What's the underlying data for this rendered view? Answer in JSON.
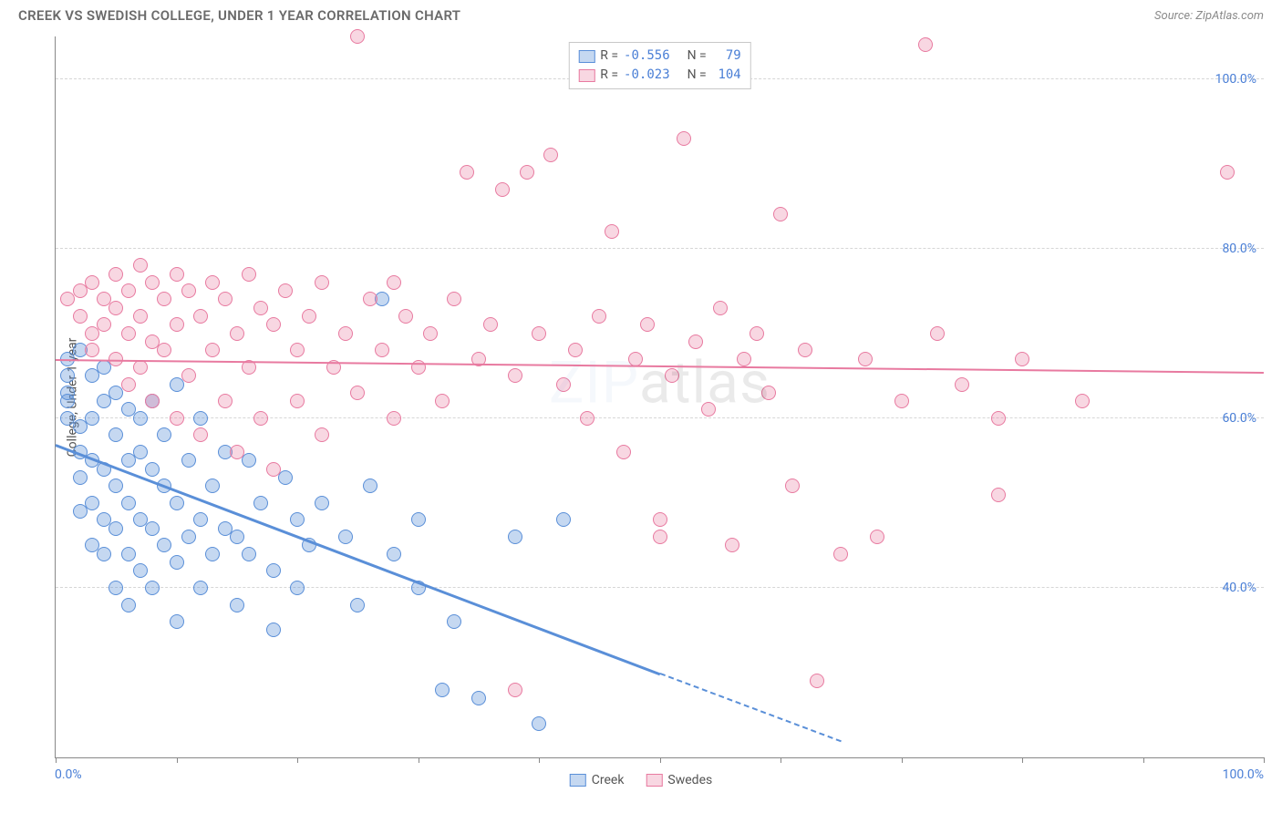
{
  "title": "CREEK VS SWEDISH COLLEGE, UNDER 1 YEAR CORRELATION CHART",
  "source": "Source: ZipAtlas.com",
  "ylabel": "College, Under 1 year",
  "watermark": {
    "part1": "ZIP",
    "part2": "atlas"
  },
  "chart": {
    "type": "scatter",
    "background_color": "#ffffff",
    "grid_color": "#d6d6d6",
    "axis_color": "#888888",
    "tick_label_color": "#4a7fd6",
    "tick_fontsize": 14,
    "ylabel_fontsize": 14,
    "xlim": [
      0,
      100
    ],
    "ylim": [
      20,
      105
    ],
    "y_ticks": [
      40,
      60,
      80,
      100
    ],
    "y_tick_labels": [
      "40.0%",
      "60.0%",
      "80.0%",
      "100.0%"
    ],
    "x_tick_positions": [
      0,
      10,
      20,
      30,
      40,
      50,
      60,
      70,
      80,
      90,
      100
    ],
    "x_min_label": "0.0%",
    "x_max_label": "100.0%",
    "marker_radius": 8,
    "marker_border_width": 1.5,
    "marker_fill_opacity": 0.35,
    "series": [
      {
        "name": "Creek",
        "color": "#5a8fd8",
        "fill": "rgba(90,143,216,0.35)",
        "R": "-0.556",
        "N": "79",
        "trend": {
          "x0": 0,
          "y0": 57,
          "x1": 50,
          "y1": 30,
          "dash_x1": 65,
          "dash_y1": 22,
          "line_width": 2.5
        },
        "points": [
          [
            1,
            67
          ],
          [
            1,
            65
          ],
          [
            1,
            63
          ],
          [
            1,
            62
          ],
          [
            1,
            60
          ],
          [
            2,
            68
          ],
          [
            2,
            59
          ],
          [
            2,
            56
          ],
          [
            2,
            53
          ],
          [
            2,
            49
          ],
          [
            3,
            65
          ],
          [
            3,
            60
          ],
          [
            3,
            55
          ],
          [
            3,
            50
          ],
          [
            3,
            45
          ],
          [
            4,
            66
          ],
          [
            4,
            62
          ],
          [
            4,
            54
          ],
          [
            4,
            48
          ],
          [
            4,
            44
          ],
          [
            5,
            63
          ],
          [
            5,
            58
          ],
          [
            5,
            52
          ],
          [
            5,
            47
          ],
          [
            5,
            40
          ],
          [
            6,
            61
          ],
          [
            6,
            55
          ],
          [
            6,
            50
          ],
          [
            6,
            44
          ],
          [
            6,
            38
          ],
          [
            7,
            60
          ],
          [
            7,
            56
          ],
          [
            7,
            48
          ],
          [
            7,
            42
          ],
          [
            8,
            62
          ],
          [
            8,
            54
          ],
          [
            8,
            47
          ],
          [
            8,
            40
          ],
          [
            9,
            58
          ],
          [
            9,
            52
          ],
          [
            9,
            45
          ],
          [
            10,
            64
          ],
          [
            10,
            50
          ],
          [
            10,
            43
          ],
          [
            10,
            36
          ],
          [
            11,
            55
          ],
          [
            11,
            46
          ],
          [
            12,
            60
          ],
          [
            12,
            48
          ],
          [
            12,
            40
          ],
          [
            13,
            52
          ],
          [
            13,
            44
          ],
          [
            14,
            56
          ],
          [
            14,
            47
          ],
          [
            15,
            46
          ],
          [
            15,
            38
          ],
          [
            16,
            55
          ],
          [
            16,
            44
          ],
          [
            17,
            50
          ],
          [
            18,
            42
          ],
          [
            18,
            35
          ],
          [
            19,
            53
          ],
          [
            20,
            48
          ],
          [
            20,
            40
          ],
          [
            21,
            45
          ],
          [
            22,
            50
          ],
          [
            24,
            46
          ],
          [
            25,
            38
          ],
          [
            26,
            52
          ],
          [
            27,
            74
          ],
          [
            28,
            44
          ],
          [
            30,
            48
          ],
          [
            30,
            40
          ],
          [
            32,
            28
          ],
          [
            33,
            36
          ],
          [
            35,
            27
          ],
          [
            38,
            46
          ],
          [
            40,
            24
          ],
          [
            42,
            48
          ]
        ]
      },
      {
        "name": "Swedes",
        "color": "#e87aa0",
        "fill": "rgba(232,122,160,0.30)",
        "R": "-0.023",
        "N": "104",
        "trend": {
          "x0": 0,
          "y0": 67,
          "x1": 100,
          "y1": 65.5,
          "line_width": 2
        },
        "points": [
          [
            1,
            74
          ],
          [
            2,
            75
          ],
          [
            2,
            72
          ],
          [
            3,
            76
          ],
          [
            3,
            70
          ],
          [
            3,
            68
          ],
          [
            4,
            74
          ],
          [
            4,
            71
          ],
          [
            5,
            77
          ],
          [
            5,
            73
          ],
          [
            5,
            67
          ],
          [
            6,
            75
          ],
          [
            6,
            70
          ],
          [
            6,
            64
          ],
          [
            7,
            78
          ],
          [
            7,
            72
          ],
          [
            7,
            66
          ],
          [
            8,
            76
          ],
          [
            8,
            69
          ],
          [
            8,
            62
          ],
          [
            9,
            74
          ],
          [
            9,
            68
          ],
          [
            10,
            77
          ],
          [
            10,
            71
          ],
          [
            10,
            60
          ],
          [
            11,
            75
          ],
          [
            11,
            65
          ],
          [
            12,
            72
          ],
          [
            12,
            58
          ],
          [
            13,
            76
          ],
          [
            13,
            68
          ],
          [
            14,
            74
          ],
          [
            14,
            62
          ],
          [
            15,
            70
          ],
          [
            15,
            56
          ],
          [
            16,
            77
          ],
          [
            16,
            66
          ],
          [
            17,
            73
          ],
          [
            17,
            60
          ],
          [
            18,
            71
          ],
          [
            18,
            54
          ],
          [
            19,
            75
          ],
          [
            20,
            68
          ],
          [
            20,
            62
          ],
          [
            21,
            72
          ],
          [
            22,
            76
          ],
          [
            22,
            58
          ],
          [
            23,
            66
          ],
          [
            24,
            70
          ],
          [
            25,
            63
          ],
          [
            25,
            105
          ],
          [
            26,
            74
          ],
          [
            27,
            68
          ],
          [
            28,
            76
          ],
          [
            28,
            60
          ],
          [
            29,
            72
          ],
          [
            30,
            66
          ],
          [
            31,
            70
          ],
          [
            32,
            62
          ],
          [
            33,
            74
          ],
          [
            34,
            89
          ],
          [
            35,
            67
          ],
          [
            36,
            71
          ],
          [
            37,
            87
          ],
          [
            38,
            28
          ],
          [
            38,
            65
          ],
          [
            39,
            89
          ],
          [
            40,
            70
          ],
          [
            41,
            91
          ],
          [
            42,
            64
          ],
          [
            43,
            68
          ],
          [
            44,
            60
          ],
          [
            45,
            72
          ],
          [
            46,
            82
          ],
          [
            47,
            56
          ],
          [
            48,
            67
          ],
          [
            49,
            71
          ],
          [
            50,
            46
          ],
          [
            50,
            48
          ],
          [
            51,
            65
          ],
          [
            52,
            93
          ],
          [
            53,
            69
          ],
          [
            54,
            61
          ],
          [
            55,
            73
          ],
          [
            56,
            45
          ],
          [
            57,
            67
          ],
          [
            58,
            70
          ],
          [
            59,
            63
          ],
          [
            60,
            84
          ],
          [
            61,
            52
          ],
          [
            62,
            68
          ],
          [
            63,
            29
          ],
          [
            65,
            44
          ],
          [
            67,
            67
          ],
          [
            68,
            46
          ],
          [
            70,
            62
          ],
          [
            72,
            104
          ],
          [
            73,
            70
          ],
          [
            75,
            64
          ],
          [
            78,
            60
          ],
          [
            80,
            67
          ],
          [
            85,
            62
          ],
          [
            97,
            89
          ],
          [
            78,
            51
          ]
        ]
      }
    ]
  },
  "legend_corr": {
    "R_label": "R =",
    "N_label": "N ="
  },
  "legend_series": {
    "creek": "Creek",
    "swedes": "Swedes"
  }
}
